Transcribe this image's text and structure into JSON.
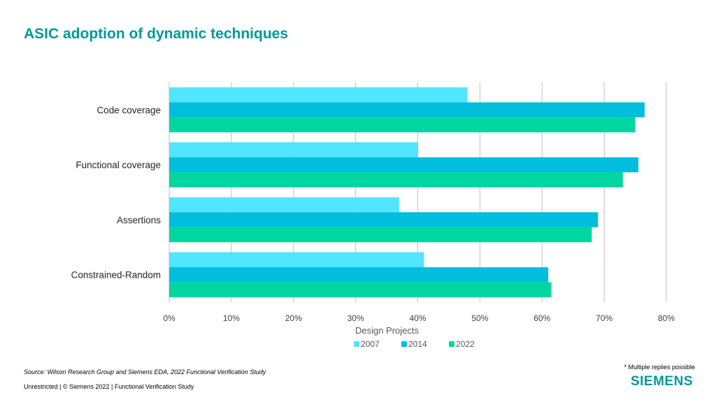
{
  "slide": {
    "title": "ASIC adoption of dynamic techniques",
    "source": "Source:  Wilson Research Group and Siemens EDA, 2022 Functional Verification Study",
    "footer": "Unrestricted | © Siemens 2022 |  Functional Verification Study",
    "note": "* Multiple replies possible",
    "logo": "SIEMENS"
  },
  "chart_data": {
    "type": "bar",
    "orientation": "horizontal",
    "categories": [
      "Code coverage",
      "Functional coverage",
      "Assertions",
      "Constrained-Random"
    ],
    "series": [
      {
        "name": "2007",
        "color": "#52E5FF",
        "values": [
          48,
          40,
          37,
          41
        ]
      },
      {
        "name": "2014",
        "color": "#00BEDC",
        "values": [
          76.5,
          75.5,
          69,
          61
        ]
      },
      {
        "name": "2022",
        "color": "#00D7A0",
        "values": [
          75,
          73,
          68,
          61.5
        ]
      }
    ],
    "xlabel": "Design Projects",
    "ylabel": "",
    "xlim": [
      0,
      80
    ],
    "xticks": [
      "0%",
      "10%",
      "20%",
      "30%",
      "40%",
      "50%",
      "60%",
      "70%",
      "80%"
    ],
    "grid": true,
    "legend": "bottom"
  }
}
